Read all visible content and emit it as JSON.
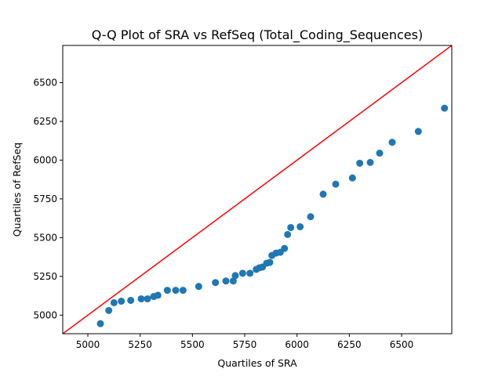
{
  "chart_data": {
    "type": "scatter",
    "title": "Q-Q Plot of SRA vs RefSeq (Total_Coding_Sequences)",
    "xlabel": "Quartiles of SRA",
    "ylabel": "Quartiles of RefSeq",
    "xlim": [
      4880,
      6740
    ],
    "ylim": [
      4880,
      6740
    ],
    "xticks": [
      5000,
      5250,
      5500,
      5750,
      6000,
      6250,
      6500
    ],
    "yticks": [
      5000,
      5250,
      5500,
      5750,
      6000,
      6250,
      6500
    ],
    "grid": false,
    "legend": "none",
    "point_color": "#1f77b4",
    "reference_line": {
      "color": "#ff0000",
      "x": [
        4880,
        6740
      ],
      "y": [
        4880,
        6740
      ]
    },
    "points": [
      {
        "x": 5060,
        "y": 4945
      },
      {
        "x": 5100,
        "y": 5030
      },
      {
        "x": 5125,
        "y": 5080
      },
      {
        "x": 5160,
        "y": 5090
      },
      {
        "x": 5205,
        "y": 5095
      },
      {
        "x": 5255,
        "y": 5105
      },
      {
        "x": 5285,
        "y": 5105
      },
      {
        "x": 5315,
        "y": 5120
      },
      {
        "x": 5335,
        "y": 5128
      },
      {
        "x": 5380,
        "y": 5160
      },
      {
        "x": 5420,
        "y": 5160
      },
      {
        "x": 5455,
        "y": 5160
      },
      {
        "x": 5530,
        "y": 5185
      },
      {
        "x": 5610,
        "y": 5210
      },
      {
        "x": 5660,
        "y": 5220
      },
      {
        "x": 5695,
        "y": 5220
      },
      {
        "x": 5705,
        "y": 5255
      },
      {
        "x": 5740,
        "y": 5270
      },
      {
        "x": 5775,
        "y": 5270
      },
      {
        "x": 5805,
        "y": 5295
      },
      {
        "x": 5820,
        "y": 5305
      },
      {
        "x": 5835,
        "y": 5310
      },
      {
        "x": 5855,
        "y": 5335
      },
      {
        "x": 5870,
        "y": 5340
      },
      {
        "x": 5880,
        "y": 5385
      },
      {
        "x": 5900,
        "y": 5400
      },
      {
        "x": 5920,
        "y": 5405
      },
      {
        "x": 5940,
        "y": 5430
      },
      {
        "x": 5955,
        "y": 5520
      },
      {
        "x": 5970,
        "y": 5565
      },
      {
        "x": 6015,
        "y": 5570
      },
      {
        "x": 6065,
        "y": 5635
      },
      {
        "x": 6125,
        "y": 5780
      },
      {
        "x": 6185,
        "y": 5845
      },
      {
        "x": 6265,
        "y": 5885
      },
      {
        "x": 6300,
        "y": 5980
      },
      {
        "x": 6350,
        "y": 5985
      },
      {
        "x": 6395,
        "y": 6045
      },
      {
        "x": 6455,
        "y": 6115
      },
      {
        "x": 6580,
        "y": 6185
      },
      {
        "x": 6705,
        "y": 6335
      }
    ]
  }
}
